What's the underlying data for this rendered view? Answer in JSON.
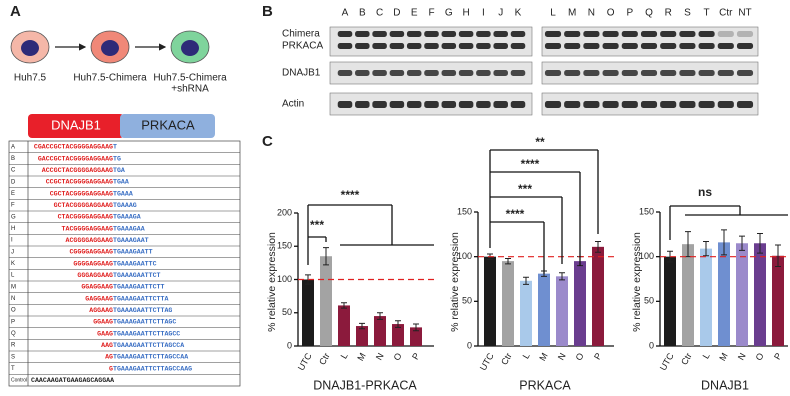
{
  "panel_labels": [
    "A",
    "B",
    "C"
  ],
  "panel_a": {
    "cells": [
      [
        "Huh7.5"
      ],
      [
        "Huh7.5-Chimera"
      ],
      [
        "Huh7.5-Chimera",
        "+shRNA"
      ]
    ],
    "fusion": [
      "DNAJB1",
      "PRKACA"
    ],
    "table": {
      "rows": [
        [
          "A",
          "CGACCGCTACGGGGAGGAAG",
          "T"
        ],
        [
          "B",
          "GACCGCTACGGGGAGGAAG",
          "TG"
        ],
        [
          "C",
          "ACCGCTACGGGGAGGAAG",
          "TGA"
        ],
        [
          "D",
          "CCGCTACGGGGAGGAAG",
          "TGAA"
        ],
        [
          "E",
          "CGCTACGGGGAGGAAG",
          "TGAAA"
        ],
        [
          "F",
          "GCTACGGGGAGGAAG",
          "TGAAAG"
        ],
        [
          "G",
          "CTACGGGGAGGAAG",
          "TGAAAGA"
        ],
        [
          "H",
          "TACGGGGAGGAAG",
          "TGAAAGAA"
        ],
        [
          "I",
          "ACGGGGAGGAAG",
          "TGAAAGAAT"
        ],
        [
          "J",
          "CGGGGAGGAAG",
          "TGAAAGAATT"
        ],
        [
          "K",
          "GGGGAGGAAG",
          "TGAAAGAATTC"
        ],
        [
          "L",
          "GGGAGGAAG",
          "TGAAAGAATTCT"
        ],
        [
          "M",
          "GGAGGAAG",
          "TGAAAGAATTCTT"
        ],
        [
          "N",
          "GAGGAAG",
          "TGAAAGAATTCTTA"
        ],
        [
          "O",
          "AGGAAG",
          "TGAAAGAATTCTTAG"
        ],
        [
          "P",
          "GGAAG",
          "TGAAAGAATTCTTAGC"
        ],
        [
          "Q",
          "GAAG",
          "TGAAAGAATTCTTAGCC"
        ],
        [
          "R",
          "AAG",
          "TGAAAGAATTCTTAGCCA"
        ],
        [
          "S",
          "AG",
          "TGAAAGAATTCTTAGCCAA"
        ],
        [
          "T",
          "G",
          "TGAAAGAATTCTTAGCCAAG"
        ],
        [
          "Control",
          "CAACAAGATGAAGAGCAGGAA"
        ]
      ]
    }
  },
  "panel_b": {
    "lanes_left": [
      "A",
      "B",
      "C",
      "D",
      "E",
      "F",
      "G",
      "H",
      "I",
      "J",
      "K"
    ],
    "lanes_right": [
      "L",
      "M",
      "N",
      "O",
      "P",
      "Q",
      "R",
      "S",
      "T",
      "Ctr",
      "NT"
    ],
    "rows": [
      "Chimera",
      "PRKACA",
      "DNAJB1",
      "Actin"
    ]
  },
  "chart_data": [
    {
      "type": "bar",
      "title": "DNAJB1-PRKACA",
      "ylabel": "% relative expression",
      "categories": [
        "UTC",
        "Ctr",
        "L",
        "M",
        "N",
        "O",
        "P"
      ],
      "values": [
        100,
        135,
        61,
        30,
        45,
        33,
        28
      ],
      "errors": [
        7,
        13,
        4,
        4,
        5,
        5,
        5
      ],
      "colors": [
        "#1c1c1c",
        "#a3a3a3",
        "#8b1a3c",
        "#8b1a3c",
        "#8b1a3c",
        "#8b1a3c",
        "#8b1a3c"
      ],
      "ylim": [
        0,
        200
      ],
      "yticks": [
        0,
        50,
        100,
        150,
        200
      ],
      "reference_line": 100,
      "annotations": [
        "***",
        "****"
      ]
    },
    {
      "type": "bar",
      "title": "PRKACA",
      "ylabel": "% relative expression",
      "categories": [
        "UTC",
        "Ctr",
        "L",
        "M",
        "N",
        "O",
        "P"
      ],
      "values": [
        100,
        95,
        73,
        81,
        78,
        95,
        111
      ],
      "errors": [
        3,
        3,
        4,
        3,
        4,
        5,
        6
      ],
      "colors": [
        "#1c1c1c",
        "#a3a3a3",
        "#a9c9ea",
        "#6f8fd0",
        "#9b8acb",
        "#6a3d8f",
        "#8b1a3c"
      ],
      "ylim": [
        0,
        150
      ],
      "yticks": [
        0,
        50,
        100,
        150
      ],
      "reference_line": 100,
      "annotations": [
        "**",
        "****",
        "***",
        "****"
      ]
    },
    {
      "type": "bar",
      "title": "DNAJB1",
      "ylabel": "% relative expression",
      "categories": [
        "UTC",
        "Ctr",
        "L",
        "M",
        "N",
        "O",
        "P"
      ],
      "values": [
        100,
        114,
        109,
        116,
        115,
        115,
        101
      ],
      "errors": [
        6,
        14,
        8,
        14,
        8,
        11,
        12
      ],
      "colors": [
        "#1c1c1c",
        "#a3a3a3",
        "#a9c9ea",
        "#6f8fd0",
        "#9b8acb",
        "#6a3d8f",
        "#8b1a3c"
      ],
      "ylim": [
        0,
        150
      ],
      "yticks": [
        0,
        50,
        100,
        150
      ],
      "reference_line": 100,
      "annotations": [
        "ns"
      ]
    }
  ]
}
